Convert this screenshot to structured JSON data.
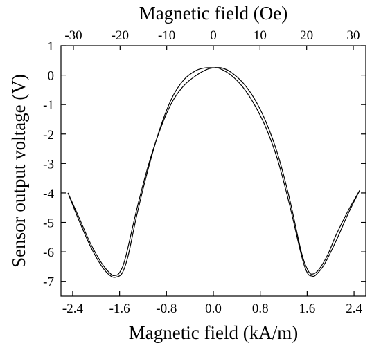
{
  "chart_data": {
    "type": "line",
    "title": "",
    "xlabel": "Magnetic field (kA/m)",
    "x2label": "Magnetic field (Oe)",
    "ylabel": "Sensor output voltage (V)",
    "xlim": [
      -2.6,
      2.6
    ],
    "x2lim": [
      -32.67,
      32.67
    ],
    "ylim": [
      -7.5,
      1
    ],
    "x_ticks": [
      "-2.4",
      "-1.6",
      "-0.8",
      "0.0",
      "0.8",
      "1.6",
      "2.4"
    ],
    "x_tick_values": [
      -2.4,
      -1.6,
      -0.8,
      0.0,
      0.8,
      1.6,
      2.4
    ],
    "x2_ticks": [
      "-30",
      "-20",
      "-10",
      "0",
      "10",
      "20",
      "30"
    ],
    "x2_tick_values": [
      -30,
      -20,
      -10,
      0,
      10,
      20,
      30
    ],
    "y_ticks": [
      "1",
      "0",
      "-1",
      "-2",
      "-3",
      "-4",
      "-5",
      "-6",
      "-7"
    ],
    "y_tick_values": [
      1,
      0,
      -1,
      -2,
      -3,
      -4,
      -5,
      -6,
      -7
    ],
    "grid": false,
    "series": [
      {
        "x": [
          -2.48,
          -2.3,
          -2.1,
          -1.9,
          -1.75,
          -1.68,
          -1.6,
          -1.5,
          -1.3,
          -1.1,
          -0.9,
          -0.7,
          -0.5,
          -0.3,
          -0.1,
          0.05,
          0.15,
          0.3,
          0.5,
          0.7,
          0.9,
          1.1,
          1.3,
          1.5,
          1.62,
          1.7,
          1.8,
          1.95,
          2.1,
          2.3,
          2.5
        ],
        "y": [
          -4.0,
          -4.8,
          -5.7,
          -6.4,
          -6.75,
          -6.8,
          -6.7,
          -6.2,
          -4.5,
          -3.0,
          -1.8,
          -0.9,
          -0.35,
          -0.02,
          0.2,
          0.25,
          0.24,
          0.1,
          -0.25,
          -0.8,
          -1.6,
          -2.7,
          -4.2,
          -6.0,
          -6.65,
          -6.75,
          -6.6,
          -6.1,
          -5.4,
          -4.6,
          -3.9
        ]
      },
      {
        "x": [
          -2.48,
          -2.3,
          -2.1,
          -1.9,
          -1.75,
          -1.65,
          -1.55,
          -1.45,
          -1.3,
          -1.1,
          -0.9,
          -0.7,
          -0.5,
          -0.3,
          -0.15,
          0.0,
          0.1,
          0.3,
          0.5,
          0.7,
          0.9,
          1.1,
          1.3,
          1.5,
          1.6,
          1.68,
          1.75,
          1.9,
          2.1,
          2.3,
          2.5
        ],
        "y": [
          -4.0,
          -4.9,
          -5.8,
          -6.5,
          -6.82,
          -6.85,
          -6.7,
          -6.1,
          -4.7,
          -3.1,
          -1.75,
          -0.75,
          -0.15,
          0.15,
          0.24,
          0.25,
          0.23,
          0.0,
          -0.4,
          -1.0,
          -1.8,
          -2.9,
          -4.4,
          -6.1,
          -6.7,
          -6.82,
          -6.78,
          -6.4,
          -5.6,
          -4.7,
          -3.9
        ]
      }
    ]
  }
}
